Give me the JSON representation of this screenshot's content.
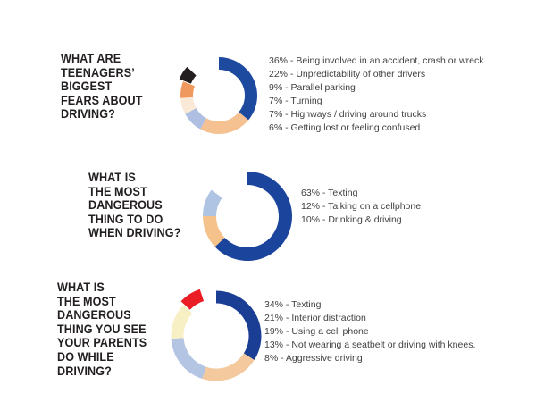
{
  "page": {
    "background": "#ffffff",
    "title_color": "#231f20",
    "legend_text_color": "#414042"
  },
  "sections": [
    {
      "title": "WHAT ARE\nTEENAGERS’\nBIGGEST\nFEARS ABOUT\nDRIVING?"
    },
    {
      "title": "WHAT IS\nTHE MOST\nDANGEROUS\nTHING TO DO\nWHEN DRIVING?"
    },
    {
      "title": "WHAT IS\nTHE MOST\nDANGEROUS\nTHING YOU SEE\nYOUR PARENTS\nDO WHILE\nDRIVING?"
    }
  ],
  "chart_data": [
    {
      "type": "pie",
      "donut": true,
      "title": "WHAT ARE TEENAGERS' BIGGEST FEARS ABOUT DRIVING?",
      "start_angle_deg": 0,
      "direction": "clockwise",
      "legend_position": "right",
      "unfilled_gap_pct": 13,
      "segments": [
        {
          "label": "Being involved in an accident, crash or wreck",
          "value": 36,
          "color": "#1d4a9f"
        },
        {
          "label": "Unpredictability of other drivers",
          "value": 22,
          "color": "#f5c191"
        },
        {
          "label": "Parallel parking",
          "value": 9,
          "color": "#aebfe2"
        },
        {
          "label": "Turning",
          "value": 7,
          "color": "#fbe9d8"
        },
        {
          "label": "Highways / driving around trucks",
          "value": 7,
          "color": "#f0995f"
        },
        {
          "label": "Getting lost or feeling confused",
          "value": 6,
          "color": "#231f20"
        }
      ]
    },
    {
      "type": "pie",
      "donut": true,
      "title": "WHAT IS THE MOST DANGEROUS THING TO DO WHEN DRIVING?",
      "start_angle_deg": 0,
      "direction": "clockwise",
      "legend_position": "right",
      "unfilled_gap_pct": 15,
      "segments": [
        {
          "label": "Texting",
          "value": 63,
          "color": "#1b459c"
        },
        {
          "label": "Talking on a cellphone",
          "value": 12,
          "color": "#f6c28c"
        },
        {
          "label": "Drinking & driving",
          "value": 10,
          "color": "#afc3e3"
        }
      ]
    },
    {
      "type": "pie",
      "donut": true,
      "title": "WHAT IS THE MOST DANGEROUS THING YOU SEE YOUR PARENTS DO WHILE DRIVING?",
      "start_angle_deg": 0,
      "direction": "clockwise",
      "legend_position": "right",
      "unfilled_gap_pct": 5,
      "segments": [
        {
          "label": "Texting",
          "value": 34,
          "color": "#1a3e94"
        },
        {
          "label": "Interior distraction",
          "value": 21,
          "color": "#f4c99e"
        },
        {
          "label": "Using a cell phone",
          "value": 19,
          "color": "#b3c5e3"
        },
        {
          "label": "Not wearing a seatbelt or driving with knees.",
          "value": 13,
          "color": "#f7f0c4"
        },
        {
          "label": "Aggressive driving",
          "value": 8,
          "color": "#ea1d25"
        }
      ]
    }
  ],
  "legend_format": {
    "separator": "% - "
  }
}
